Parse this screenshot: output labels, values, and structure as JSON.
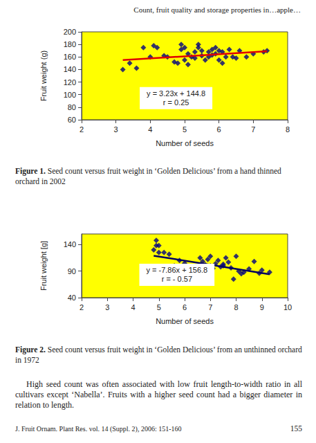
{
  "header": "Count, fruit quality and storage properties in…apple…",
  "chart_data": [
    {
      "type": "scatter",
      "xlabel": "Number of seeds",
      "ylabel": "Fruit weight (g)",
      "annotation": [
        "y = 3.23x + 144.8",
        "r = 0.25"
      ],
      "xlim": [
        2,
        8
      ],
      "xticks": [
        2,
        3,
        4,
        5,
        6,
        7,
        8
      ],
      "ylim": [
        60,
        200
      ],
      "yticks": [
        60,
        80,
        100,
        120,
        140,
        160,
        180,
        200
      ],
      "grid": false,
      "series": [
        {
          "type": "scatter",
          "marker": "diamond",
          "color": "#000080",
          "x": [
            3.2,
            3.4,
            3.6,
            3.8,
            4.0,
            4.1,
            4.2,
            4.4,
            4.5,
            4.7,
            4.8,
            4.9,
            4.9,
            5.0,
            5.1,
            5.1,
            5.2,
            5.3,
            5.4,
            5.4,
            5.5,
            5.5,
            5.6,
            5.7,
            5.7,
            5.8,
            5.8,
            5.9,
            5.9,
            6.0,
            6.0,
            6.1,
            6.2,
            6.3,
            6.4,
            6.5,
            6.6,
            6.8,
            7.0,
            7.3,
            7.4,
            5.0,
            5.3,
            6.1
          ],
          "values": [
            140,
            150,
            142,
            175,
            160,
            178,
            175,
            162,
            160,
            152,
            150,
            172,
            180,
            155,
            165,
            148,
            160,
            158,
            180,
            175,
            162,
            170,
            155,
            160,
            168,
            172,
            163,
            175,
            165,
            170,
            155,
            168,
            160,
            172,
            160,
            158,
            170,
            160,
            165,
            168,
            170,
            175,
            168,
            150
          ]
        },
        {
          "type": "line",
          "color": "#e00000",
          "x": [
            3.2,
            7.4
          ],
          "values": [
            155,
            169
          ]
        }
      ]
    },
    {
      "type": "scatter",
      "xlabel": "Number of seeds",
      "ylabel": "Fruit weight [g]",
      "annotation": [
        "y = -7.86x + 156.8",
        "r = - 0.57"
      ],
      "xlim": [
        2,
        10
      ],
      "xticks": [
        2,
        3,
        4,
        5,
        6,
        7,
        8,
        9,
        10
      ],
      "ylim": [
        40,
        160
      ],
      "yticks": [
        40,
        90,
        140
      ],
      "grid": false,
      "series": [
        {
          "type": "scatter",
          "marker": "diamond",
          "color": "#000080",
          "x": [
            4.8,
            4.9,
            4.9,
            5.0,
            5.0,
            5.2,
            5.4,
            5.6,
            5.8,
            6.0,
            6.1,
            6.2,
            6.3,
            6.6,
            6.7,
            6.8,
            6.9,
            7.0,
            7.0,
            7.1,
            7.2,
            7.3,
            7.4,
            7.5,
            7.6,
            7.7,
            7.8,
            7.9,
            8.0,
            8.1,
            8.3,
            8.5,
            8.7,
            8.9,
            9.0,
            9.3,
            8.2,
            7.5
          ],
          "values": [
            130,
            148,
            138,
            125,
            138,
            125,
            122,
            100,
            110,
            105,
            97,
            95,
            92,
            115,
            108,
            102,
            112,
            118,
            100,
            95,
            104,
            110,
            98,
            100,
            115,
            107,
            96,
            75,
            118,
            90,
            88,
            94,
            108,
            86,
            92,
            88,
            85,
            103
          ]
        },
        {
          "type": "line",
          "color": "#000060",
          "x": [
            4.8,
            9.3
          ],
          "values": [
            119,
            84
          ]
        }
      ]
    }
  ],
  "captions": [
    {
      "label": "Figure 1.",
      "text": "Seed count versus fruit weight in ‘Golden Delicious’ from a hand thinned orchard in 2002"
    },
    {
      "label": "Figure 2.",
      "text": "Seed count versus fruit weight in ‘Golden Delicious’ from an unthinned orchard in 1972"
    }
  ],
  "paragraph": "High seed count was often associated with low fruit length-to-width ratio in all cultivars except ‘Nabella’. Fruits with a higher seed count had a bigger diameter in relation to length.",
  "footer": {
    "citation": "J. Fruit Ornam. Plant Res. vol. 14 (Suppl. 2), 2006: 151-160",
    "page": 155
  }
}
